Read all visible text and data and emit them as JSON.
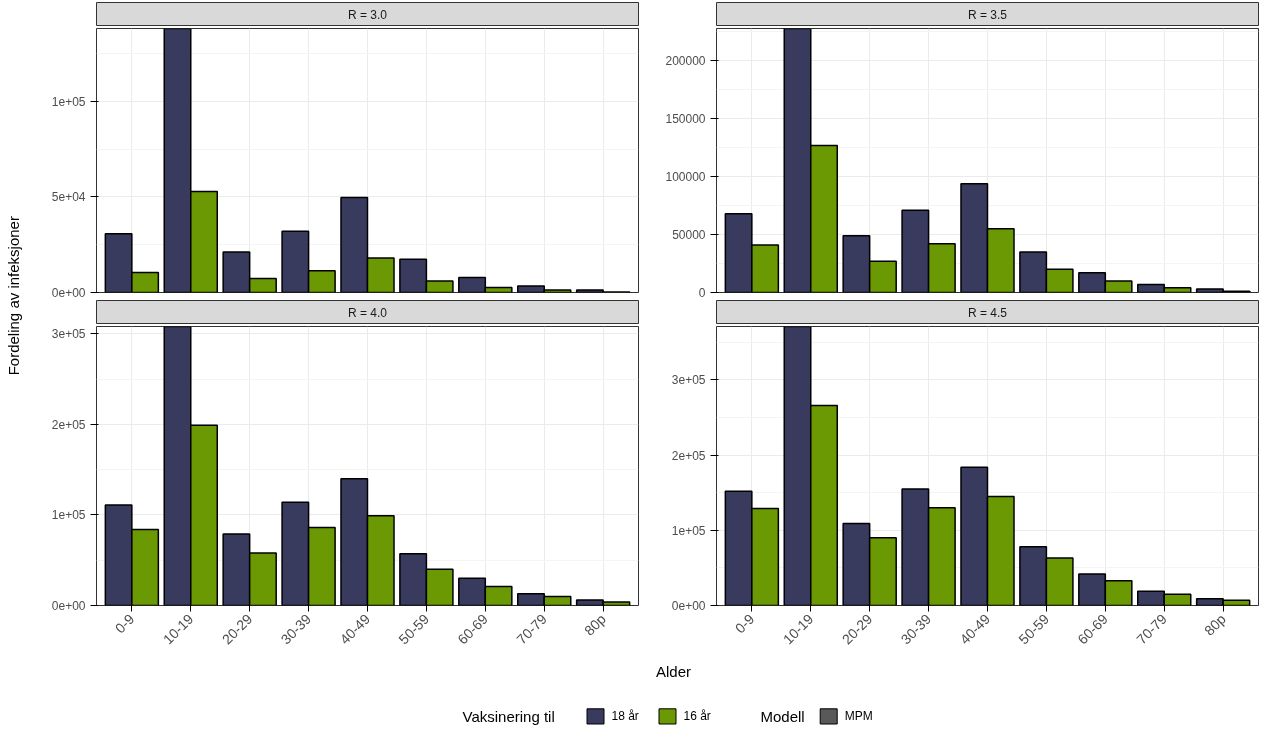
{
  "chart_data": [
    {
      "type": "bar",
      "title": "R = 3.0",
      "xlabel": "Alder",
      "ylabel": "Fordeling av infeksjoner",
      "legend_title": "Vaksinering til",
      "legend": "bottom",
      "annotations": [
        "Modell"
      ],
      "tick_labels": "y",
      "grid": true,
      "categories": [
        null,
        null,
        null,
        null,
        null,
        null,
        null,
        null,
        null
      ],
      "ylim": [
        0,
        138000
      ],
      "yticks": [
        {
          "value": 0,
          "label": "0e+00"
        },
        {
          "value": 50000,
          "label": "5e+04"
        },
        {
          "value": 100000,
          "label": "1e+05"
        }
      ],
      "series": [
        {
          "name": "18 år",
          "color": "#383a5e",
          "values": [
            30700,
            138000,
            21200,
            32000,
            49600,
            17400,
            7900,
            3400,
            1300
          ]
        },
        {
          "name": "16 år",
          "color": "#6b9904",
          "values": [
            10500,
            52800,
            7300,
            11400,
            18000,
            6000,
            2600,
            1300,
            300
          ]
        },
        {
          "name": "MPM",
          "color": "#595959",
          "values": [
            null,
            null,
            null,
            null,
            null,
            null,
            null,
            null,
            null
          ]
        }
      ]
    },
    {
      "type": "bar",
      "title": "R = 3.5",
      "tick_labels": "y",
      "grid": true,
      "categories": [
        null,
        null,
        null,
        null,
        null,
        null,
        null,
        null,
        null
      ],
      "ylim": [
        0,
        228000
      ],
      "yticks": [
        0,
        50000,
        100000,
        150000,
        200000
      ],
      "series": [
        {
          "color": "#383a5e",
          "values": [
            68000,
            228000,
            49000,
            71000,
            94000,
            35000,
            17000,
            7000,
            3000
          ]
        },
        {
          "color": "#6b9904",
          "values": [
            41000,
            127000,
            27000,
            42000,
            55000,
            20000,
            10000,
            4000,
            1000
          ]
        }
      ]
    },
    {
      "type": "bar",
      "title": "R = 4.0",
      "grid": true,
      "categories": [
        "0-9",
        "10-19",
        "20-29",
        "30-39",
        "40-49",
        "50-59",
        "60-69",
        "70-79",
        "80p"
      ],
      "ylim": [
        0,
        308000
      ],
      "yticks": [
        {
          "value": 0,
          "label": "0e+00"
        },
        {
          "value": 100000,
          "label": "1e+05"
        },
        {
          "value": 200000,
          "label": "2e+05"
        },
        {
          "value": 300000,
          "label": "3e+05"
        }
      ],
      "series": [
        {
          "color": "#383a5e",
          "values": [
            111000,
            308000,
            79000,
            114000,
            140000,
            57000,
            30000,
            13000,
            6000
          ]
        },
        {
          "color": "#6b9904",
          "values": [
            84000,
            199000,
            58000,
            86000,
            99000,
            40000,
            21000,
            10000,
            4000
          ]
        }
      ]
    },
    {
      "type": "bar",
      "title": "R = 4.5",
      "grid": true,
      "categories": [
        "0-9",
        "10-19",
        "20-29",
        "30-39",
        "40-49",
        "50-59",
        "60-69",
        "70-79",
        "80p"
      ],
      "ylim": [
        0,
        371000
      ],
      "yticks": [
        {
          "value": 0,
          "label": "0e+00"
        },
        {
          "value": 100000,
          "label": "1e+05"
        },
        {
          "value": 200000,
          "label": "2e+05"
        },
        {
          "value": 300000,
          "label": "3e+05"
        }
      ],
      "series": [
        {
          "color": "#383a5e",
          "values": [
            152000,
            371000,
            109000,
            155000,
            184000,
            78000,
            42000,
            19000,
            9000
          ]
        },
        {
          "color": "#6b9904",
          "values": [
            129000,
            266000,
            90000,
            130000,
            145000,
            63000,
            33000,
            15000,
            7000
          ]
        }
      ]
    }
  ]
}
